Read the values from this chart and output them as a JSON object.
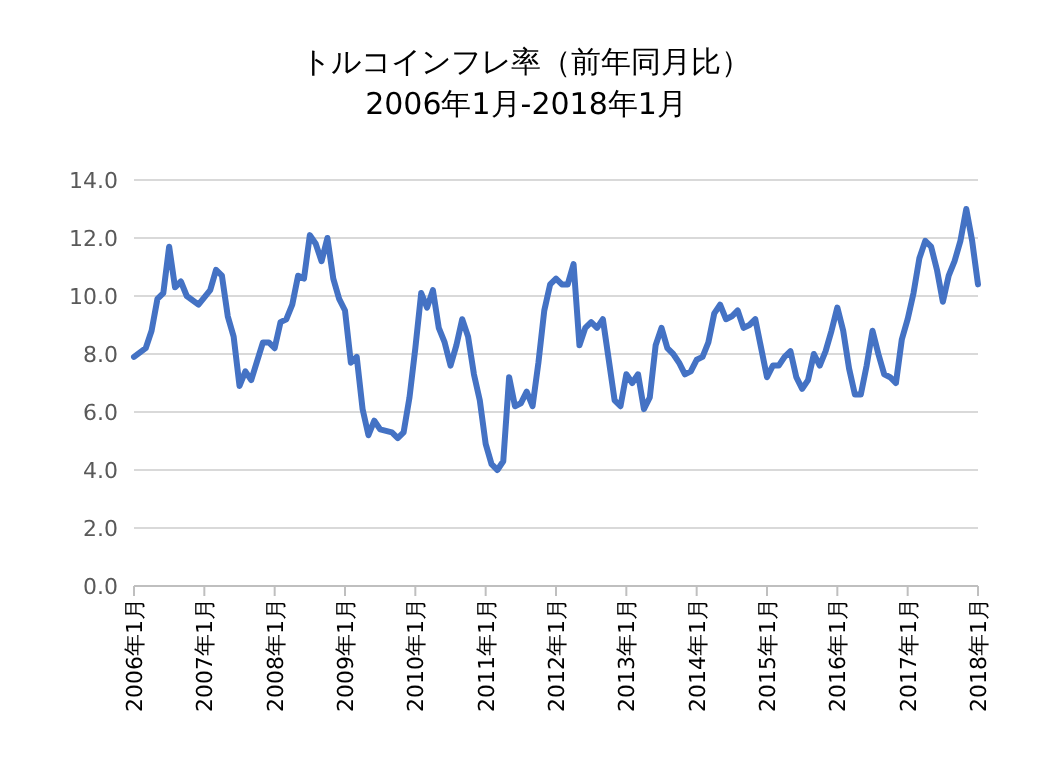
{
  "chart_data": {
    "type": "line",
    "title": "トルコインフレ率（前年同月比）",
    "subtitle": "2006年1月-2018年1月",
    "x": [
      "2006-01",
      "2006-03",
      "2006-04",
      "2006-05",
      "2006-06",
      "2006-07",
      "2006-08",
      "2006-09",
      "2006-10",
      "2006-12",
      "2007-02",
      "2007-03",
      "2007-04",
      "2007-05",
      "2007-06",
      "2007-07",
      "2007-08",
      "2007-09",
      "2007-11",
      "2007-12",
      "2008-01",
      "2008-02",
      "2008-03",
      "2008-04",
      "2008-05",
      "2008-06",
      "2008-07",
      "2008-08",
      "2008-09",
      "2008-10",
      "2008-11",
      "2008-12",
      "2009-01",
      "2009-02",
      "2009-03",
      "2009-04",
      "2009-05",
      "2009-06",
      "2009-07",
      "2009-09",
      "2009-10",
      "2009-11",
      "2009-12",
      "2010-01",
      "2010-02",
      "2010-03",
      "2010-04",
      "2010-05",
      "2010-06",
      "2010-07",
      "2010-08",
      "2010-09",
      "2010-10",
      "2010-11",
      "2010-12",
      "2011-01",
      "2011-02",
      "2011-03",
      "2011-04",
      "2011-05",
      "2011-06",
      "2011-07",
      "2011-08",
      "2011-09",
      "2011-10",
      "2011-11",
      "2011-12",
      "2012-01",
      "2012-02",
      "2012-03",
      "2012-04",
      "2012-05",
      "2012-06",
      "2012-07",
      "2012-08",
      "2012-09",
      "2012-10",
      "2012-11",
      "2012-12",
      "2013-01",
      "2013-02",
      "2013-03",
      "2013-04",
      "2013-05",
      "2013-06",
      "2013-07",
      "2013-08",
      "2013-09",
      "2013-10",
      "2013-11",
      "2013-12",
      "2014-01",
      "2014-02",
      "2014-03",
      "2014-04",
      "2014-05",
      "2014-06",
      "2014-07",
      "2014-08",
      "2014-09",
      "2014-10",
      "2014-11",
      "2014-12",
      "2015-01",
      "2015-02",
      "2015-03",
      "2015-04",
      "2015-05",
      "2015-06",
      "2015-07",
      "2015-08",
      "2015-09",
      "2015-10",
      "2015-11",
      "2015-12",
      "2016-01",
      "2016-02",
      "2016-03",
      "2016-04",
      "2016-05",
      "2016-06",
      "2016-07",
      "2016-08",
      "2016-09",
      "2016-10",
      "2016-11",
      "2016-12",
      "2017-01",
      "2017-02",
      "2017-03",
      "2017-04",
      "2017-05",
      "2017-06",
      "2017-07",
      "2017-08",
      "2017-09",
      "2017-10",
      "2017-11",
      "2017-12",
      "2018-01"
    ],
    "values": [
      7.9,
      8.2,
      8.8,
      9.9,
      10.1,
      11.7,
      10.3,
      10.5,
      10.0,
      9.7,
      10.2,
      10.9,
      10.7,
      9.3,
      8.6,
      6.9,
      7.4,
      7.1,
      8.4,
      8.4,
      8.2,
      9.1,
      9.2,
      9.7,
      10.7,
      10.6,
      12.1,
      11.8,
      11.2,
      12.0,
      10.6,
      9.9,
      9.5,
      7.7,
      7.9,
      6.1,
      5.2,
      5.7,
      5.4,
      5.3,
      5.1,
      5.3,
      6.5,
      8.2,
      10.1,
      9.6,
      10.2,
      8.9,
      8.4,
      7.6,
      8.3,
      9.2,
      8.6,
      7.3,
      6.4,
      4.9,
      4.2,
      4.0,
      4.3,
      7.2,
      6.2,
      6.3,
      6.7,
      6.2,
      7.7,
      9.5,
      10.4,
      10.6,
      10.4,
      10.4,
      11.1,
      8.3,
      8.9,
      9.1,
      8.9,
      9.2,
      7.8,
      6.4,
      6.2,
      7.3,
      7.0,
      7.3,
      6.1,
      6.5,
      8.3,
      8.9,
      8.2,
      8.0,
      7.7,
      7.3,
      7.4,
      7.8,
      7.9,
      8.4,
      9.4,
      9.7,
      9.2,
      9.3,
      9.5,
      8.9,
      9.0,
      9.2,
      8.2,
      7.2,
      7.6,
      7.6,
      7.9,
      8.1,
      7.2,
      6.8,
      7.1,
      8.0,
      7.6,
      8.1,
      8.8,
      9.6,
      8.8,
      7.5,
      6.6,
      6.6,
      7.6,
      8.8,
      8.0,
      7.3,
      7.2,
      7.0,
      8.5,
      9.2,
      10.1,
      11.3,
      11.9,
      11.7,
      10.9,
      9.8,
      10.7,
      11.2,
      11.9,
      13.0,
      11.9,
      10.4
    ],
    "color": "#4472c4",
    "xlim": [
      "2006-01",
      "2018-01"
    ],
    "xticks": [
      {
        "value": "2006-01",
        "label": "2006年1月"
      },
      {
        "value": "2007-01",
        "label": "2007年1月"
      },
      {
        "value": "2008-01",
        "label": "2008年1月"
      },
      {
        "value": "2009-01",
        "label": "2009年1月"
      },
      {
        "value": "2010-01",
        "label": "2010年1月"
      },
      {
        "value": "2011-01",
        "label": "2011年1月"
      },
      {
        "value": "2012-01",
        "label": "2012年1月"
      },
      {
        "value": "2013-01",
        "label": "2013年1月"
      },
      {
        "value": "2014-01",
        "label": "2014年1月"
      },
      {
        "value": "2015-01",
        "label": "2015年1月"
      },
      {
        "value": "2016-01",
        "label": "2016年1月"
      },
      {
        "value": "2017-01",
        "label": "2017年1月"
      },
      {
        "value": "2018-01",
        "label": "2018年1月"
      }
    ],
    "ylim": [
      0,
      14
    ],
    "yticks": [
      {
        "value": 0,
        "label": "0.0"
      },
      {
        "value": 2,
        "label": "2.0"
      },
      {
        "value": 4,
        "label": "4.0"
      },
      {
        "value": 6,
        "label": "6.0"
      },
      {
        "value": 8,
        "label": "8.0"
      },
      {
        "value": 10,
        "label": "10.0"
      },
      {
        "value": 12,
        "label": "12.0"
      },
      {
        "value": 14,
        "label": "14.0"
      }
    ],
    "grid": "y",
    "marker": "none",
    "line_style": "solid"
  }
}
